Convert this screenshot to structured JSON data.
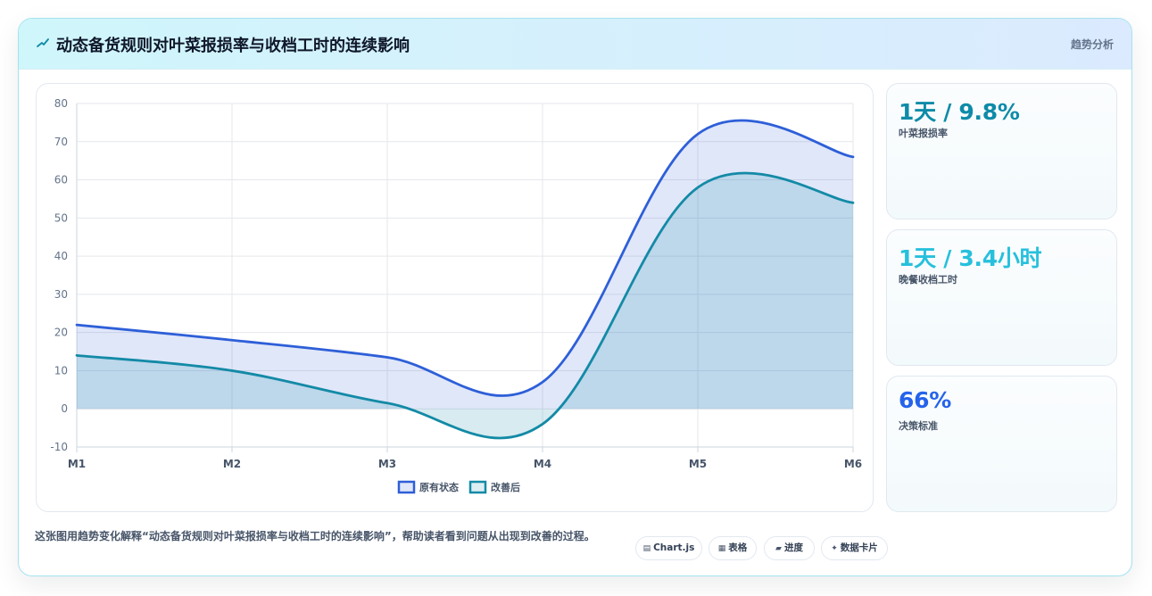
{
  "header": {
    "title": "动态备货规则对叶菜报损率与收档工时的连续影响",
    "tag": "趋势分析"
  },
  "chart_data": {
    "type": "area",
    "categories": [
      "M1",
      "M2",
      "M3",
      "M4",
      "M5",
      "M6"
    ],
    "ylim": [
      -10,
      80
    ],
    "yticks": [
      -10,
      0,
      10,
      20,
      30,
      40,
      50,
      60,
      70,
      80
    ],
    "grid": true,
    "legend_position": "bottom",
    "series": [
      {
        "name": "原有状态",
        "values": [
          22,
          18,
          13.5,
          7,
          72,
          66
        ],
        "color": "#2e5fd8"
      },
      {
        "name": "改善后",
        "values": [
          14,
          10,
          1.5,
          -4,
          58,
          54
        ],
        "color": "#138aa6"
      }
    ]
  },
  "kpis": [
    {
      "value": "1天 / 9.8%",
      "label": "叶菜报损率",
      "color": "#0e8ba8"
    },
    {
      "value": "1天 / 3.4小时",
      "label": "晚餐收档工时",
      "color": "#27c0dc"
    },
    {
      "value": "66%",
      "label": "决策标准",
      "color": "#2563eb"
    }
  ],
  "footer": {
    "description": "这张图用趋势变化解释“动态备货规则对叶菜报损率与收档工时的连续影响”，帮助读者看到问题从出现到改善的过程。",
    "chips": [
      {
        "icon": "▤",
        "label": "Chart.js"
      },
      {
        "icon": "▦",
        "label": "表格"
      },
      {
        "icon": "▰",
        "label": "进度"
      },
      {
        "icon": "✦",
        "label": "数据卡片"
      }
    ]
  }
}
